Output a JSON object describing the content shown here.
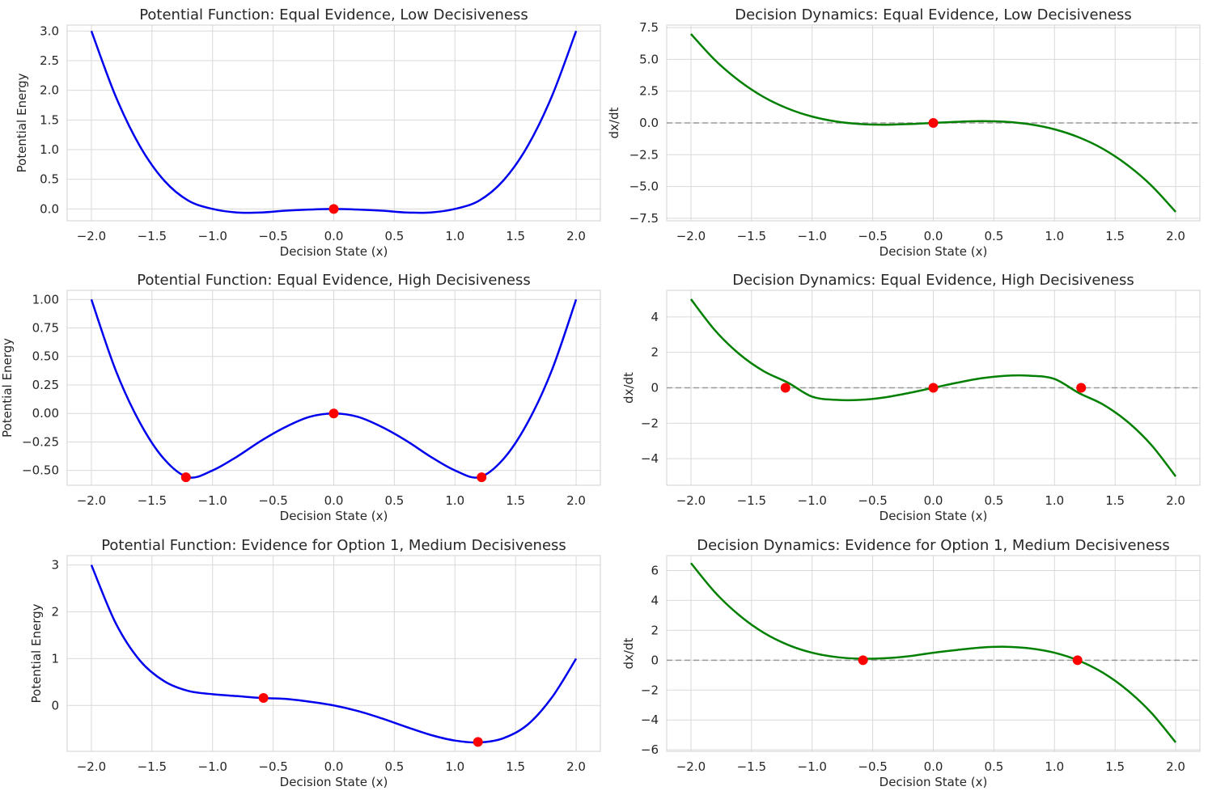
{
  "chart_data": [
    {
      "type": "line",
      "title": "Potential Function: Equal Evidence, Low Decisiveness",
      "xlabel": "Decision State (x)",
      "ylabel": "Potential Energy",
      "xlim": [
        -2.2,
        2.2
      ],
      "ylim": [
        -0.2,
        3.1
      ],
      "xticks": [
        -2.0,
        -1.5,
        -1.0,
        -0.5,
        0.0,
        0.5,
        1.0,
        1.5,
        2.0
      ],
      "xtick_labels": [
        "−2.0",
        "−1.5",
        "−1.0",
        "−0.5",
        "0.0",
        "0.5",
        "1.0",
        "1.5",
        "2.0"
      ],
      "yticks": [
        0.0,
        0.5,
        1.0,
        1.5,
        2.0,
        2.5,
        3.0
      ],
      "ytick_labels": [
        "0.0",
        "0.5",
        "1.0",
        "1.5",
        "2.0",
        "2.5",
        "3.0"
      ],
      "grid": true,
      "zero_line": false,
      "line_color": "#0000ee",
      "x": [
        -2.0,
        -1.8,
        -1.6,
        -1.4,
        -1.2,
        -1.0,
        -0.8,
        -0.6,
        -0.4,
        -0.2,
        0.0,
        0.2,
        0.4,
        0.6,
        0.8,
        1.0,
        1.2,
        1.4,
        1.6,
        1.8,
        2.0
      ],
      "y": [
        3.0,
        1.9,
        1.06,
        0.48,
        0.14,
        -0.0,
        -0.06,
        -0.06,
        -0.03,
        -0.01,
        0.0,
        -0.01,
        -0.03,
        -0.06,
        -0.06,
        -0.0,
        0.14,
        0.48,
        1.06,
        1.9,
        3.0
      ],
      "points": [
        [
          0.0,
          0.0
        ]
      ]
    },
    {
      "type": "line",
      "title": "Decision Dynamics: Equal Evidence, Low Decisiveness",
      "xlabel": "Decision State (x)",
      "ylabel": "dx/dt",
      "xlim": [
        -2.2,
        2.2
      ],
      "ylim": [
        -7.7,
        7.7
      ],
      "xticks": [
        -2.0,
        -1.5,
        -1.0,
        -0.5,
        0.0,
        0.5,
        1.0,
        1.5,
        2.0
      ],
      "xtick_labels": [
        "−2.0",
        "−1.5",
        "−1.0",
        "−0.5",
        "0.0",
        "0.5",
        "1.0",
        "1.5",
        "2.0"
      ],
      "yticks": [
        -7.5,
        -5.0,
        -2.5,
        0.0,
        2.5,
        5.0,
        7.5
      ],
      "ytick_labels": [
        "−7.5",
        "−5.0",
        "−2.5",
        "0.0",
        "2.5",
        "5.0",
        "7.5"
      ],
      "grid": true,
      "zero_line": true,
      "line_color": "#008000",
      "x": [
        -2.0,
        -1.8,
        -1.6,
        -1.4,
        -1.2,
        -1.0,
        -0.8,
        -0.6,
        -0.4,
        -0.2,
        0.0,
        0.2,
        0.4,
        0.6,
        0.8,
        1.0,
        1.2,
        1.4,
        1.6,
        1.8,
        2.0
      ],
      "y": [
        7.0,
        4.93,
        3.3,
        2.04,
        1.13,
        0.5,
        0.11,
        -0.09,
        -0.14,
        -0.09,
        0.0,
        0.09,
        0.14,
        0.09,
        -0.11,
        -0.5,
        -1.13,
        -2.04,
        -3.3,
        -4.93,
        -7.0
      ],
      "points": [
        [
          0.0,
          0.0
        ]
      ]
    },
    {
      "type": "line",
      "title": "Potential Function: Equal Evidence, High Decisiveness",
      "xlabel": "Decision State (x)",
      "ylabel": "Potential Energy",
      "xlim": [
        -2.2,
        2.2
      ],
      "ylim": [
        -0.63,
        1.08
      ],
      "xticks": [
        -2.0,
        -1.5,
        -1.0,
        -0.5,
        0.0,
        0.5,
        1.0,
        1.5,
        2.0
      ],
      "xtick_labels": [
        "−2.0",
        "−1.5",
        "−1.0",
        "−0.5",
        "0.0",
        "0.5",
        "1.0",
        "1.5",
        "2.0"
      ],
      "yticks": [
        -0.5,
        -0.25,
        0.0,
        0.25,
        0.5,
        0.75,
        1.0
      ],
      "ytick_labels": [
        "−0.50",
        "−0.25",
        "0.00",
        "0.25",
        "0.50",
        "0.75",
        "1.00"
      ],
      "grid": true,
      "zero_line": false,
      "line_color": "#0000ee",
      "x": [
        -2.0,
        -1.8,
        -1.6,
        -1.4,
        -1.2,
        -1.0,
        -0.8,
        -0.6,
        -0.4,
        -0.2,
        0.0,
        0.2,
        0.4,
        0.6,
        0.8,
        1.0,
        1.2,
        1.4,
        1.6,
        1.8,
        2.0
      ],
      "y": [
        1.0,
        0.38,
        -0.08,
        -0.4,
        -0.56,
        -0.5,
        -0.38,
        -0.24,
        -0.12,
        -0.03,
        0.0,
        -0.03,
        -0.12,
        -0.24,
        -0.38,
        -0.5,
        -0.56,
        -0.4,
        -0.08,
        0.38,
        1.0
      ],
      "points": [
        [
          -1.22,
          -0.56
        ],
        [
          0.0,
          0.0
        ],
        [
          1.22,
          -0.56
        ]
      ]
    },
    {
      "type": "line",
      "title": "Decision Dynamics: Equal Evidence, High Decisiveness",
      "xlabel": "Decision State (x)",
      "ylabel": "dx/dt",
      "xlim": [
        -2.2,
        2.2
      ],
      "ylim": [
        -5.5,
        5.5
      ],
      "xticks": [
        -2.0,
        -1.5,
        -1.0,
        -0.5,
        0.0,
        0.5,
        1.0,
        1.5,
        2.0
      ],
      "xtick_labels": [
        "−2.0",
        "−1.5",
        "−1.0",
        "−0.5",
        "0.0",
        "0.5",
        "1.0",
        "1.5",
        "2.0"
      ],
      "yticks": [
        -4,
        -2,
        0,
        2,
        4
      ],
      "ytick_labels": [
        "−4",
        "−2",
        "0",
        "2",
        "4"
      ],
      "grid": true,
      "zero_line": true,
      "line_color": "#008000",
      "x": [
        -2.0,
        -1.8,
        -1.6,
        -1.4,
        -1.2,
        -1.0,
        -0.8,
        -0.6,
        -0.4,
        -0.2,
        0.0,
        0.2,
        0.4,
        0.6,
        0.8,
        1.0,
        1.2,
        1.4,
        1.6,
        1.8,
        2.0
      ],
      "y": [
        5.0,
        3.23,
        1.9,
        0.94,
        0.29,
        -0.5,
        -0.68,
        -0.68,
        -0.54,
        -0.29,
        0.0,
        0.29,
        0.54,
        0.68,
        0.68,
        0.5,
        -0.29,
        -0.94,
        -1.9,
        -3.23,
        -5.0
      ],
      "points": [
        [
          -1.22,
          0.0
        ],
        [
          0.0,
          0.0
        ],
        [
          1.22,
          0.0
        ]
      ]
    },
    {
      "type": "line",
      "title": "Potential Function: Evidence for Option 1, Medium Decisiveness",
      "xlabel": "Decision State (x)",
      "ylabel": "Potential Energy",
      "xlim": [
        -2.2,
        2.2
      ],
      "ylim": [
        -0.98,
        3.2
      ],
      "xticks": [
        -2.0,
        -1.5,
        -1.0,
        -0.5,
        0.0,
        0.5,
        1.0,
        1.5,
        2.0
      ],
      "xtick_labels": [
        "−2.0",
        "−1.5",
        "−1.0",
        "−0.5",
        "0.0",
        "0.5",
        "1.0",
        "1.5",
        "2.0"
      ],
      "yticks": [
        0,
        1,
        2,
        3
      ],
      "ytick_labels": [
        "0",
        "1",
        "2",
        "3"
      ],
      "grid": true,
      "zero_line": false,
      "line_color": "#0000ee",
      "x": [
        -2.0,
        -1.8,
        -1.6,
        -1.4,
        -1.2,
        -1.0,
        -0.8,
        -0.6,
        -0.4,
        -0.2,
        0.0,
        0.2,
        0.4,
        0.6,
        0.8,
        1.0,
        1.2,
        1.4,
        1.6,
        1.8,
        2.0
      ],
      "y": [
        3.0,
        1.76,
        0.96,
        0.52,
        0.31,
        0.24,
        0.2,
        0.16,
        0.14,
        0.08,
        0.0,
        -0.12,
        -0.28,
        -0.46,
        -0.63,
        -0.75,
        -0.79,
        -0.7,
        -0.41,
        0.17,
        1.0
      ],
      "points": [
        [
          -0.58,
          0.16
        ],
        [
          1.19,
          -0.78
        ]
      ]
    },
    {
      "type": "line",
      "title": "Decision Dynamics: Evidence for Option 1, Medium Decisiveness",
      "xlabel": "Decision State (x)",
      "ylabel": "dx/dt",
      "xlim": [
        -2.2,
        2.2
      ],
      "ylim": [
        -6.1,
        7.0
      ],
      "xticks": [
        -2.0,
        -1.5,
        -1.0,
        -0.5,
        0.0,
        0.5,
        1.0,
        1.5,
        2.0
      ],
      "xtick_labels": [
        "−2.0",
        "−1.5",
        "−1.0",
        "−0.5",
        "0.0",
        "0.5",
        "1.0",
        "1.5",
        "2.0"
      ],
      "yticks": [
        -6,
        -4,
        -2,
        0,
        2,
        4,
        6
      ],
      "ytick_labels": [
        "−6",
        "−4",
        "−2",
        "0",
        "2",
        "4",
        "6"
      ],
      "grid": true,
      "zero_line": true,
      "line_color": "#008000",
      "x": [
        -2.0,
        -1.8,
        -1.6,
        -1.4,
        -1.2,
        -1.0,
        -0.8,
        -0.6,
        -0.4,
        -0.2,
        0.0,
        0.2,
        0.4,
        0.6,
        0.8,
        1.0,
        1.2,
        1.4,
        1.6,
        1.8,
        2.0
      ],
      "y": [
        6.5,
        4.53,
        3.0,
        1.84,
        1.03,
        0.5,
        0.21,
        0.1,
        0.13,
        0.27,
        0.5,
        0.69,
        0.85,
        0.9,
        0.79,
        0.5,
        -0.03,
        -0.84,
        -2.0,
        -3.53,
        -5.5
      ],
      "points": [
        [
          -0.58,
          0.0
        ],
        [
          1.19,
          0.0
        ]
      ]
    }
  ]
}
